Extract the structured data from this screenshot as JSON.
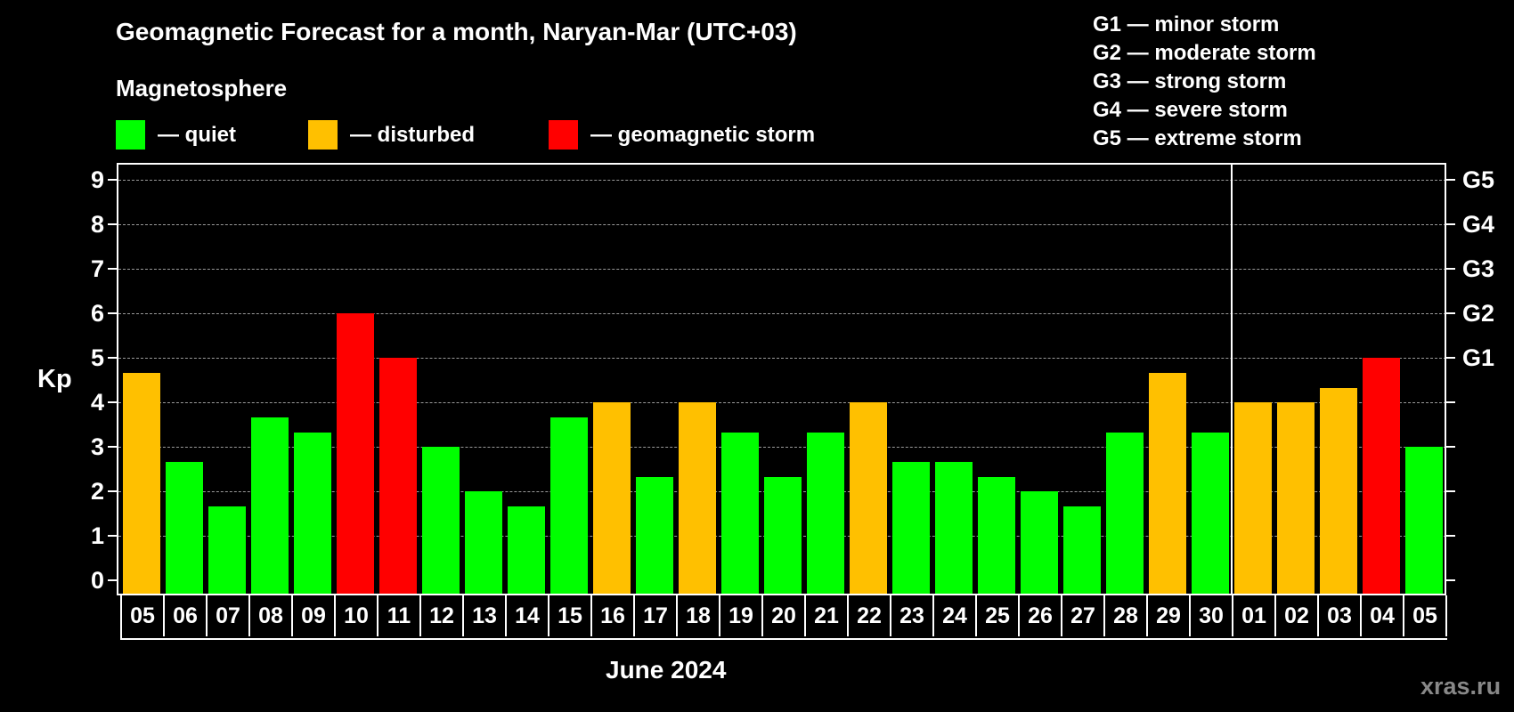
{
  "header": {
    "title": "Geomagnetic Forecast for a month, Naryan-Mar (UTC+03)",
    "subtitle": "Magnetosphere"
  },
  "legend": [
    {
      "label": "— quiet",
      "color": "#00ff00"
    },
    {
      "label": "— disturbed",
      "color": "#ffc000"
    },
    {
      "label": "— geomagnetic storm",
      "color": "#ff0000"
    }
  ],
  "storm_scale": [
    "G1 — minor storm",
    "G2 — moderate storm",
    "G3 — strong storm",
    "G4 — severe storm",
    "G5 — extreme storm"
  ],
  "axes": {
    "ylabel": "Kp",
    "yticks": [
      "0",
      "1",
      "2",
      "3",
      "4",
      "5",
      "6",
      "7",
      "8",
      "9"
    ],
    "right_labels": [
      {
        "kp": 5,
        "label": "G1"
      },
      {
        "kp": 6,
        "label": "G2"
      },
      {
        "kp": 7,
        "label": "G3"
      },
      {
        "kp": 8,
        "label": "G4"
      },
      {
        "kp": 9,
        "label": "G5"
      }
    ],
    "xlabel": "June 2024"
  },
  "watermark": "xras.ru",
  "chart_data": {
    "type": "bar",
    "title": "Geomagnetic Forecast for a month, Naryan-Mar (UTC+03)",
    "xlabel": "June 2024",
    "ylabel": "Kp",
    "ylim": [
      0,
      9
    ],
    "grid": true,
    "legend_position": "top-left",
    "categories": [
      "05",
      "06",
      "07",
      "08",
      "09",
      "10",
      "11",
      "12",
      "13",
      "14",
      "15",
      "16",
      "17",
      "18",
      "19",
      "20",
      "21",
      "22",
      "23",
      "24",
      "25",
      "26",
      "27",
      "28",
      "29",
      "30",
      "01",
      "02",
      "03",
      "04",
      "05"
    ],
    "values": [
      4.67,
      2.67,
      1.67,
      3.67,
      3.33,
      6.0,
      5.0,
      3.0,
      2.0,
      1.67,
      3.67,
      4.0,
      2.33,
      4.0,
      3.33,
      2.33,
      3.33,
      4.0,
      2.67,
      2.67,
      2.33,
      2.0,
      1.67,
      3.33,
      4.67,
      3.33,
      4.0,
      4.0,
      4.33,
      5.0,
      3.0
    ],
    "status": [
      "disturbed",
      "quiet",
      "quiet",
      "quiet",
      "quiet",
      "storm",
      "storm",
      "quiet",
      "quiet",
      "quiet",
      "quiet",
      "disturbed",
      "quiet",
      "disturbed",
      "quiet",
      "quiet",
      "quiet",
      "disturbed",
      "quiet",
      "quiet",
      "quiet",
      "quiet",
      "quiet",
      "quiet",
      "disturbed",
      "quiet",
      "disturbed",
      "disturbed",
      "disturbed",
      "storm",
      "quiet"
    ],
    "month_divider_after_index": 25,
    "colors": {
      "quiet": "#00ff00",
      "disturbed": "#ffc000",
      "storm": "#ff0000"
    }
  }
}
